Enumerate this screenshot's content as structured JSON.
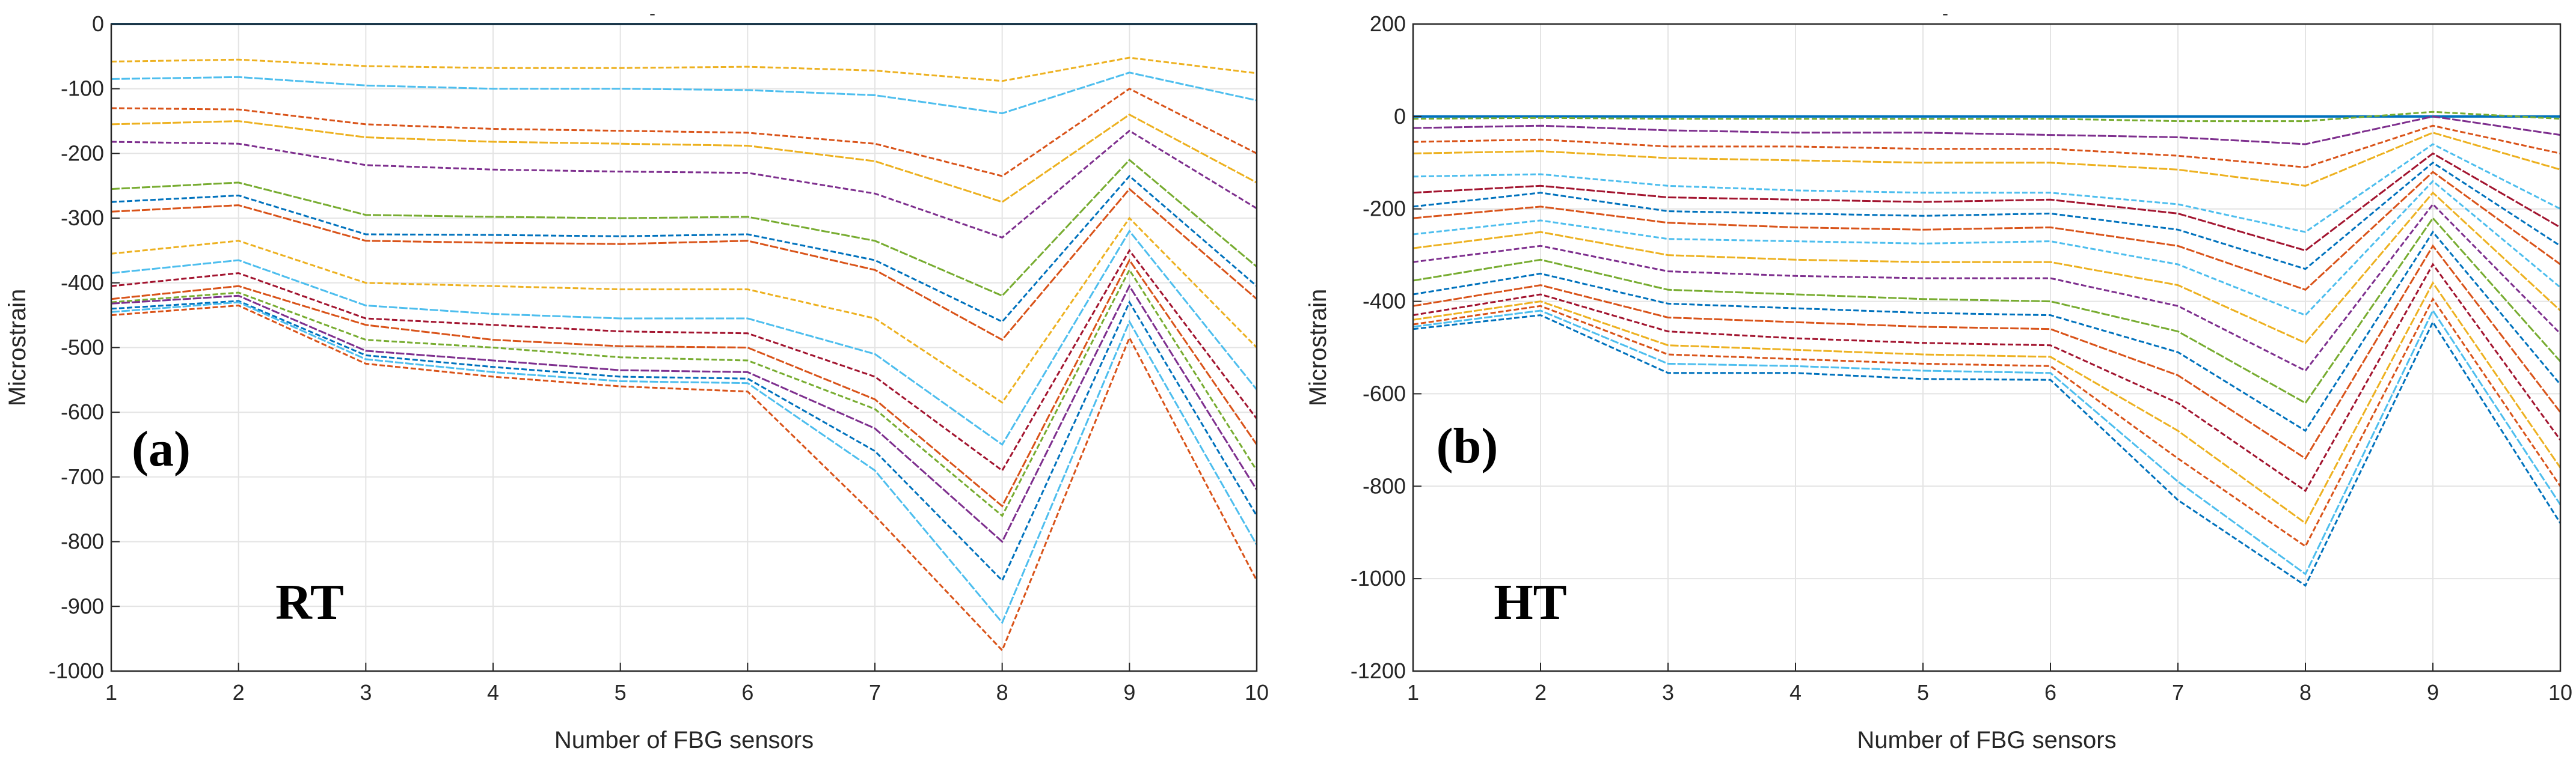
{
  "chart_data": [
    {
      "type": "line",
      "panel_label": "(a)",
      "annotation": "RT",
      "title": "-",
      "xlabel": "Number of FBG sensors",
      "ylabel": "Microstrain",
      "xlim": [
        1,
        10
      ],
      "ylim": [
        -1000,
        0
      ],
      "xticks": [
        1,
        2,
        3,
        4,
        5,
        6,
        7,
        8,
        9,
        10
      ],
      "yticks": [
        0,
        -100,
        -200,
        -300,
        -400,
        -500,
        -600,
        -700,
        -800,
        -900,
        -1000
      ],
      "grid": true,
      "x": [
        1,
        2,
        3,
        4,
        5,
        6,
        7,
        8,
        9,
        10
      ],
      "series": [
        {
          "color": "#0072BD",
          "values": [
            0,
            0,
            0,
            0,
            0,
            0,
            0,
            0,
            0,
            0
          ]
        },
        {
          "color": "#EDB120",
          "values": [
            -58,
            -55,
            -65,
            -68,
            -68,
            -66,
            -72,
            -88,
            -52,
            -76
          ]
        },
        {
          "color": "#4DBEEE",
          "values": [
            -85,
            -82,
            -95,
            -100,
            -100,
            -102,
            -110,
            -138,
            -75,
            -118
          ]
        },
        {
          "color": "#D95319",
          "values": [
            -130,
            -132,
            -155,
            -162,
            -165,
            -168,
            -185,
            -235,
            -100,
            -200
          ]
        },
        {
          "color": "#EDB120",
          "values": [
            -155,
            -150,
            -175,
            -182,
            -185,
            -188,
            -212,
            -275,
            -140,
            -245
          ]
        },
        {
          "color": "#7E2F8E",
          "values": [
            -182,
            -185,
            -218,
            -225,
            -228,
            -230,
            -262,
            -330,
            -165,
            -285
          ]
        },
        {
          "color": "#77AC30",
          "values": [
            -255,
            -245,
            -295,
            -298,
            -300,
            -298,
            -335,
            -420,
            -210,
            -375
          ]
        },
        {
          "color": "#0072BD",
          "values": [
            -275,
            -265,
            -325,
            -326,
            -328,
            -325,
            -365,
            -460,
            -235,
            -405
          ]
        },
        {
          "color": "#D95319",
          "values": [
            -290,
            -280,
            -335,
            -338,
            -340,
            -335,
            -380,
            -488,
            -255,
            -425
          ]
        },
        {
          "color": "#EDB120",
          "values": [
            -355,
            -335,
            -400,
            -405,
            -410,
            -410,
            -455,
            -585,
            -300,
            -500
          ]
        },
        {
          "color": "#4DBEEE",
          "values": [
            -385,
            -365,
            -435,
            -448,
            -455,
            -455,
            -510,
            -650,
            -320,
            -565
          ]
        },
        {
          "color": "#A2142F",
          "values": [
            -405,
            -385,
            -455,
            -465,
            -475,
            -478,
            -545,
            -690,
            -350,
            -610
          ]
        },
        {
          "color": "#D95319",
          "values": [
            -425,
            -405,
            -465,
            -488,
            -498,
            -500,
            -580,
            -745,
            -365,
            -650
          ]
        },
        {
          "color": "#77AC30",
          "values": [
            -430,
            -415,
            -488,
            -500,
            -515,
            -520,
            -595,
            -760,
            -380,
            -690
          ]
        },
        {
          "color": "#7E2F8E",
          "values": [
            -432,
            -420,
            -505,
            -520,
            -535,
            -538,
            -625,
            -800,
            -405,
            -720
          ]
        },
        {
          "color": "#0072BD",
          "values": [
            -440,
            -428,
            -512,
            -530,
            -545,
            -548,
            -660,
            -860,
            -430,
            -760
          ]
        },
        {
          "color": "#4DBEEE",
          "values": [
            -445,
            -430,
            -518,
            -538,
            -552,
            -555,
            -690,
            -925,
            -460,
            -805
          ]
        },
        {
          "color": "#D95319",
          "values": [
            -450,
            -435,
            -525,
            -545,
            -560,
            -568,
            -760,
            -968,
            -485,
            -860
          ]
        }
      ]
    },
    {
      "type": "line",
      "panel_label": "(b)",
      "annotation": "HT",
      "title": "-",
      "xlabel": "Number of FBG sensors",
      "ylabel": "Microstrain",
      "xlim": [
        1,
        10
      ],
      "ylim": [
        -1200,
        200
      ],
      "xticks": [
        1,
        2,
        3,
        4,
        5,
        6,
        7,
        8,
        9,
        10
      ],
      "yticks": [
        200,
        0,
        -200,
        -400,
        -600,
        -800,
        -1000,
        -1200
      ],
      "grid": true,
      "x": [
        1,
        2,
        3,
        4,
        5,
        6,
        7,
        8,
        9,
        10
      ],
      "series": [
        {
          "color": "#0072BD",
          "values": [
            0,
            0,
            0,
            0,
            0,
            0,
            0,
            0,
            0,
            0
          ]
        },
        {
          "color": "#77AC30",
          "values": [
            -5,
            -3,
            -5,
            -5,
            -5,
            -5,
            -10,
            -10,
            10,
            -5
          ]
        },
        {
          "color": "#7E2F8E",
          "values": [
            -25,
            -20,
            -30,
            -35,
            -35,
            -40,
            -45,
            -60,
            0,
            -40
          ]
        },
        {
          "color": "#D95319",
          "values": [
            -55,
            -50,
            -65,
            -65,
            -70,
            -70,
            -85,
            -110,
            -20,
            -80
          ]
        },
        {
          "color": "#EDB120",
          "values": [
            -80,
            -75,
            -90,
            -95,
            -100,
            -100,
            -115,
            -150,
            -35,
            -115
          ]
        },
        {
          "color": "#4DBEEE",
          "values": [
            -130,
            -125,
            -150,
            -160,
            -165,
            -165,
            -190,
            -250,
            -60,
            -200
          ]
        },
        {
          "color": "#A2142F",
          "values": [
            -165,
            -150,
            -175,
            -180,
            -185,
            -180,
            -210,
            -290,
            -80,
            -240
          ]
        },
        {
          "color": "#0072BD",
          "values": [
            -195,
            -165,
            -205,
            -210,
            -215,
            -210,
            -245,
            -330,
            -100,
            -280
          ]
        },
        {
          "color": "#D95319",
          "values": [
            -220,
            -195,
            -230,
            -240,
            -245,
            -240,
            -280,
            -375,
            -120,
            -320
          ]
        },
        {
          "color": "#4DBEEE",
          "values": [
            -255,
            -225,
            -265,
            -270,
            -275,
            -270,
            -320,
            -430,
            -140,
            -370
          ]
        },
        {
          "color": "#EDB120",
          "values": [
            -285,
            -250,
            -300,
            -310,
            -315,
            -315,
            -365,
            -490,
            -165,
            -420
          ]
        },
        {
          "color": "#7E2F8E",
          "values": [
            -315,
            -280,
            -335,
            -345,
            -350,
            -350,
            -410,
            -550,
            -190,
            -470
          ]
        },
        {
          "color": "#77AC30",
          "values": [
            -355,
            -310,
            -375,
            -385,
            -395,
            -400,
            -465,
            -620,
            -220,
            -530
          ]
        },
        {
          "color": "#0072BD",
          "values": [
            -385,
            -340,
            -405,
            -415,
            -425,
            -430,
            -510,
            -680,
            -250,
            -580
          ]
        },
        {
          "color": "#D95319",
          "values": [
            -410,
            -365,
            -435,
            -445,
            -455,
            -460,
            -560,
            -740,
            -280,
            -640
          ]
        },
        {
          "color": "#A2142F",
          "values": [
            -430,
            -385,
            -465,
            -480,
            -490,
            -495,
            -620,
            -810,
            -320,
            -700
          ]
        },
        {
          "color": "#EDB120",
          "values": [
            -440,
            -400,
            -495,
            -505,
            -515,
            -520,
            -680,
            -880,
            -360,
            -760
          ]
        },
        {
          "color": "#D95319",
          "values": [
            -450,
            -410,
            -515,
            -525,
            -535,
            -540,
            -740,
            -930,
            -395,
            -800
          ]
        },
        {
          "color": "#4DBEEE",
          "values": [
            -455,
            -420,
            -535,
            -540,
            -550,
            -555,
            -790,
            -990,
            -420,
            -840
          ]
        },
        {
          "color": "#0072BD",
          "values": [
            -460,
            -430,
            -555,
            -555,
            -568,
            -570,
            -830,
            -1015,
            -445,
            -880
          ]
        }
      ]
    }
  ]
}
